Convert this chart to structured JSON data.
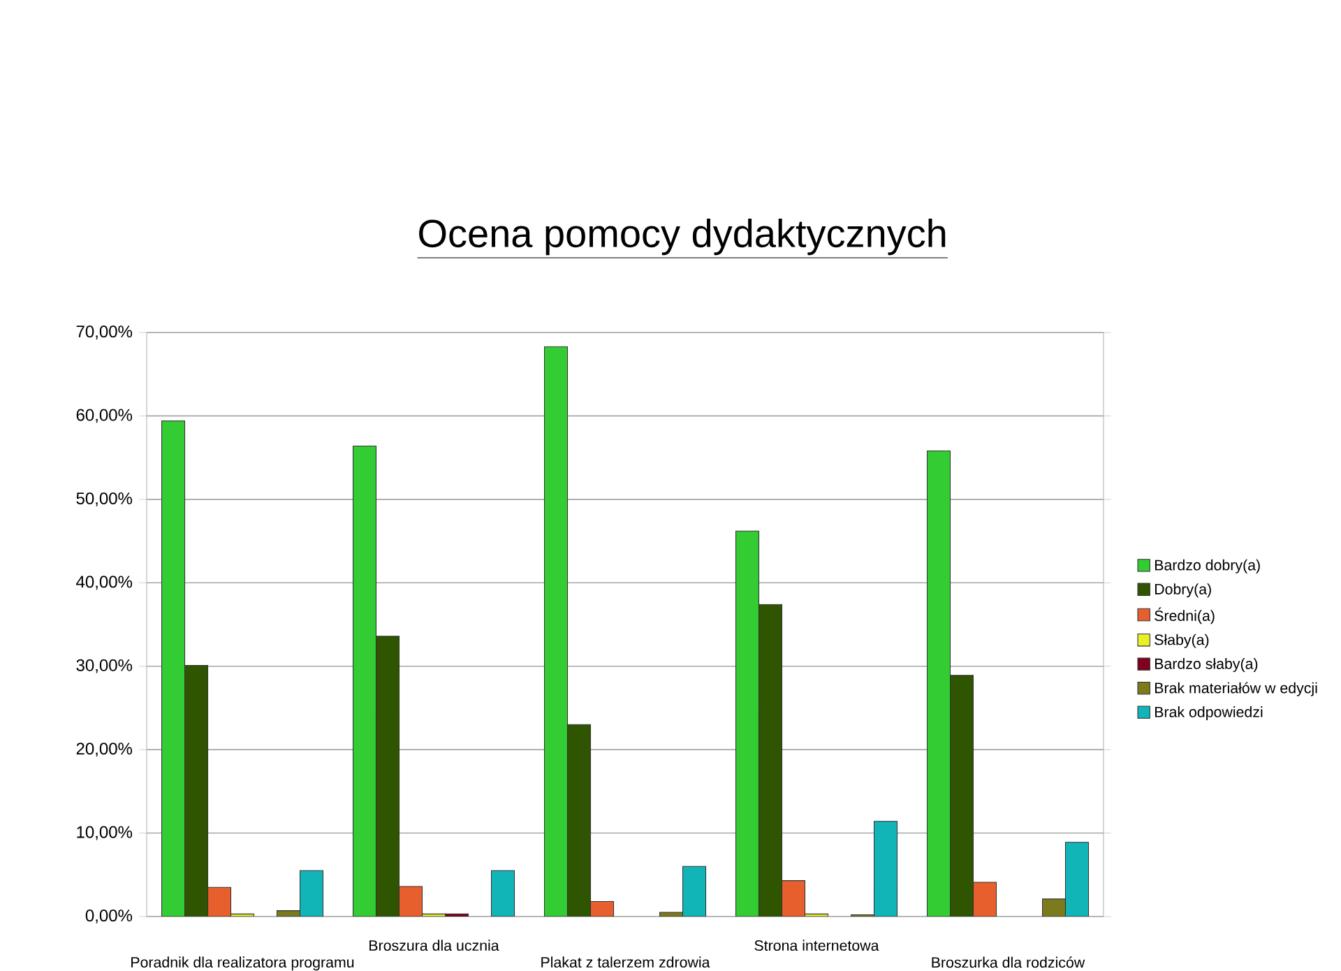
{
  "chart_data": {
    "type": "bar",
    "title": "Ocena pomocy dydaktycznych",
    "categories": [
      "Poradnik dla realizatora programu",
      "Broszura dla ucznia",
      "Plakat z talerzem zdrowia",
      "Strona internetowa",
      "Broszurka dla rodziców"
    ],
    "series": [
      {
        "name": "Bardzo dobry(a)",
        "color": "#33cc33",
        "values": [
          59.4,
          56.4,
          68.3,
          46.2,
          55.8
        ]
      },
      {
        "name": "Dobry(a)",
        "color": "#2f5500",
        "values": [
          30.1,
          33.6,
          23.0,
          37.4,
          28.9
        ]
      },
      {
        "name": "Średni(a)",
        "color": "#e85f2e",
        "values": [
          3.5,
          3.6,
          1.8,
          4.3,
          4.1
        ]
      },
      {
        "name": "Słaby(a)",
        "color": "#e8f028",
        "values": [
          0.3,
          0.3,
          null,
          0.3,
          null
        ]
      },
      {
        "name": "Bardzo słaby(a)",
        "color": "#800020",
        "values": [
          null,
          0.3,
          null,
          null,
          null
        ]
      },
      {
        "name": "Brak materiałów w edycji",
        "color": "#7d7a1e",
        "values": [
          0.7,
          null,
          0.5,
          0.2,
          2.1
        ]
      },
      {
        "name": "Brak odpowiedzi",
        "color": "#11b5b8",
        "values": [
          5.5,
          5.5,
          6.0,
          11.4,
          8.9
        ]
      }
    ],
    "ylim": [
      0,
      70
    ],
    "yticks": [
      {
        "value": 0,
        "label": "0,00%"
      },
      {
        "value": 10,
        "label": "10,00%"
      },
      {
        "value": 20,
        "label": "20,00%"
      },
      {
        "value": 30,
        "label": "30,00%"
      },
      {
        "value": 40,
        "label": "40,00%"
      },
      {
        "value": 50,
        "label": "50,00%"
      },
      {
        "value": 60,
        "label": "60,00%"
      },
      {
        "value": 70,
        "label": "70,00%"
      }
    ],
    "grid": "y",
    "legend": "right"
  }
}
